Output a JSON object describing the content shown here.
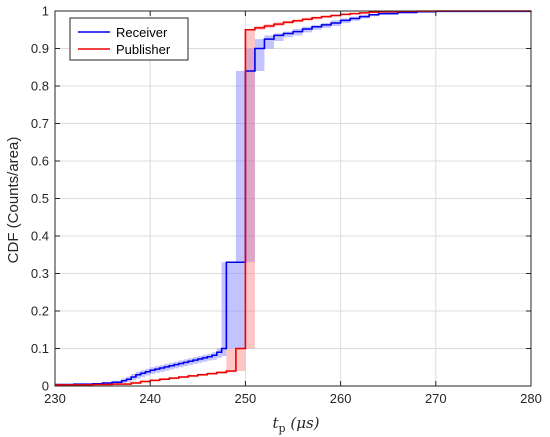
{
  "chart_data": {
    "type": "line",
    "subtype": "step-cdf",
    "xlabel": "t_p (μs)",
    "xlabel_main": "t",
    "xlabel_sub": "p",
    "xlabel_unit": " (μs)",
    "ylabel": "CDF (Counts/area)",
    "xlim": [
      230,
      280
    ],
    "ylim": [
      0,
      1
    ],
    "xticks": [
      230,
      240,
      250,
      260,
      270,
      280
    ],
    "yticks": [
      0,
      0.1,
      0.2,
      0.3,
      0.4,
      0.5,
      0.6,
      0.7,
      0.8,
      0.9,
      1
    ],
    "xtick_labels": [
      "230",
      "240",
      "250",
      "260",
      "270",
      "280"
    ],
    "ytick_labels": [
      "0",
      "0.1",
      "0.2",
      "0.3",
      "0.4",
      "0.5",
      "0.6",
      "0.7",
      "0.8",
      "0.9",
      "1"
    ],
    "grid": true,
    "legend_position": "top-left",
    "series": [
      {
        "name": "Receiver",
        "color": "#0000ee",
        "band_color": "#7a7aff",
        "x": [
          230,
          232,
          234,
          235,
          236,
          237,
          237.5,
          238,
          238.5,
          239,
          239.5,
          240,
          240.5,
          241,
          241.5,
          242,
          242.5,
          243,
          243.5,
          244,
          244.5,
          245,
          245.5,
          246,
          246.5,
          247,
          247.5,
          248,
          249,
          250,
          251,
          252,
          253,
          254,
          255,
          256,
          257,
          258,
          259,
          260,
          261,
          262,
          263,
          264,
          266,
          268,
          270,
          280
        ],
        "y": [
          0.004,
          0.005,
          0.006,
          0.008,
          0.01,
          0.014,
          0.018,
          0.024,
          0.03,
          0.034,
          0.038,
          0.042,
          0.045,
          0.048,
          0.051,
          0.054,
          0.057,
          0.06,
          0.063,
          0.066,
          0.069,
          0.072,
          0.075,
          0.078,
          0.082,
          0.09,
          0.1,
          0.33,
          0.33,
          0.84,
          0.9,
          0.925,
          0.935,
          0.94,
          0.945,
          0.952,
          0.958,
          0.963,
          0.968,
          0.975,
          0.98,
          0.985,
          0.99,
          0.993,
          0.996,
          0.998,
          0.999,
          1.0
        ],
        "band_lower": [
          0.003,
          0.004,
          0.004,
          0.005,
          0.006,
          0.008,
          0.011,
          0.015,
          0.02,
          0.024,
          0.028,
          0.032,
          0.035,
          0.038,
          0.041,
          0.044,
          0.047,
          0.05,
          0.053,
          0.056,
          0.059,
          0.062,
          0.065,
          0.068,
          0.07,
          0.075,
          0.08,
          0.1,
          0.1,
          0.33,
          0.84,
          0.9,
          0.92,
          0.93,
          0.935,
          0.943,
          0.95,
          0.955,
          0.96,
          0.968,
          0.974,
          0.98,
          0.986,
          0.99,
          0.994,
          0.997,
          0.999,
          1.0
        ],
        "band_upper": [
          0.005,
          0.006,
          0.008,
          0.01,
          0.014,
          0.02,
          0.025,
          0.032,
          0.038,
          0.042,
          0.046,
          0.05,
          0.053,
          0.056,
          0.059,
          0.062,
          0.065,
          0.068,
          0.071,
          0.074,
          0.077,
          0.08,
          0.083,
          0.086,
          0.09,
          0.1,
          0.33,
          0.33,
          0.84,
          0.9,
          0.925,
          0.935,
          0.94,
          0.945,
          0.952,
          0.958,
          0.963,
          0.968,
          0.975,
          0.98,
          0.985,
          0.99,
          0.993,
          0.996,
          0.998,
          0.999,
          1.0,
          1.0
        ]
      },
      {
        "name": "Publisher",
        "color": "#ee0000",
        "band_color": "#ff8080",
        "x": [
          230,
          234,
          236,
          238,
          239,
          240,
          241,
          242,
          243,
          244,
          245,
          246,
          247,
          248,
          249,
          250,
          251,
          252,
          253,
          254,
          255,
          256,
          257,
          258,
          259,
          260,
          261,
          262,
          263,
          264,
          266,
          268,
          270,
          280
        ],
        "y": [
          0.003,
          0.004,
          0.005,
          0.008,
          0.012,
          0.015,
          0.018,
          0.021,
          0.024,
          0.027,
          0.03,
          0.033,
          0.036,
          0.04,
          0.1,
          0.95,
          0.955,
          0.96,
          0.965,
          0.97,
          0.974,
          0.978,
          0.982,
          0.985,
          0.988,
          0.991,
          0.993,
          0.995,
          0.997,
          0.998,
          0.999,
          0.9995,
          1.0,
          1.0
        ],
        "band_lower": [
          0.002,
          0.003,
          0.004,
          0.006,
          0.009,
          0.012,
          0.015,
          0.018,
          0.021,
          0.024,
          0.027,
          0.03,
          0.033,
          0.036,
          0.04,
          0.1,
          0.95,
          0.955,
          0.96,
          0.965,
          0.97,
          0.974,
          0.978,
          0.982,
          0.985,
          0.988,
          0.991,
          0.993,
          0.995,
          0.997,
          0.998,
          0.999,
          1.0,
          1.0
        ],
        "band_upper": [
          0.004,
          0.005,
          0.008,
          0.012,
          0.015,
          0.018,
          0.021,
          0.024,
          0.027,
          0.03,
          0.033,
          0.036,
          0.04,
          0.1,
          0.1,
          0.95,
          0.96,
          0.965,
          0.97,
          0.974,
          0.978,
          0.982,
          0.985,
          0.988,
          0.991,
          0.993,
          0.995,
          0.997,
          0.998,
          0.999,
          0.9995,
          1.0,
          1.0,
          1.0
        ]
      }
    ]
  }
}
